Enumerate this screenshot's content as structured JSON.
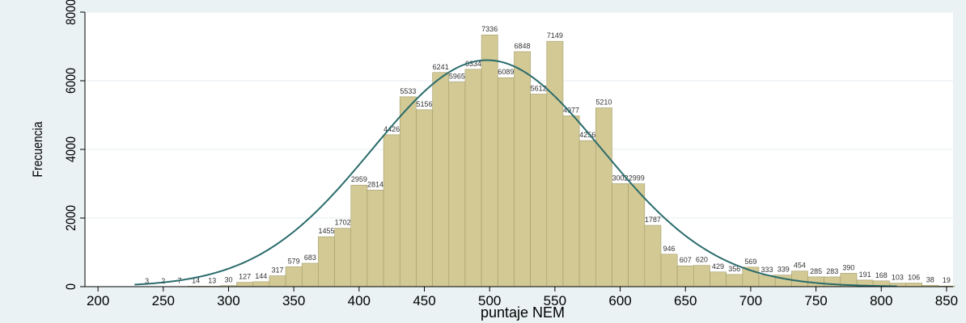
{
  "chart_data": {
    "type": "bar",
    "title": "",
    "xlabel": "puntaje NEM",
    "ylabel": "Frecuencia",
    "xlim": [
      190,
      855
    ],
    "ylim": [
      0,
      8000
    ],
    "bin_width": 12.5,
    "x_ticks": [
      200,
      250,
      300,
      350,
      400,
      450,
      500,
      550,
      600,
      650,
      700,
      750,
      800,
      850
    ],
    "y_ticks": [
      0,
      2000,
      4000,
      6000,
      8000
    ],
    "grid": true,
    "bars": [
      {
        "x": 237.5,
        "value": 3,
        "label": "3"
      },
      {
        "x": 250,
        "value": 2,
        "label": "2"
      },
      {
        "x": 262.5,
        "value": 7,
        "label": "7"
      },
      {
        "x": 275,
        "value": 14,
        "label": "14"
      },
      {
        "x": 287.5,
        "value": 13,
        "label": "13"
      },
      {
        "x": 300,
        "value": 30,
        "label": "30"
      },
      {
        "x": 312.5,
        "value": 127,
        "label": "127"
      },
      {
        "x": 325,
        "value": 144,
        "label": "144"
      },
      {
        "x": 337.5,
        "value": 317,
        "label": "317"
      },
      {
        "x": 350,
        "value": 579,
        "label": "579"
      },
      {
        "x": 362.5,
        "value": 683,
        "label": "683"
      },
      {
        "x": 375,
        "value": 1455,
        "label": "1455"
      },
      {
        "x": 387.5,
        "value": 1702,
        "label": "1702"
      },
      {
        "x": 400,
        "value": 2959,
        "label": "2959"
      },
      {
        "x": 412.5,
        "value": 2814,
        "label": "2814"
      },
      {
        "x": 425,
        "value": 4426,
        "label": "4426"
      },
      {
        "x": 437.5,
        "value": 5533,
        "label": "5533"
      },
      {
        "x": 450,
        "value": 5156,
        "label": "5156"
      },
      {
        "x": 462.5,
        "value": 6241,
        "label": "6241"
      },
      {
        "x": 475,
        "value": 5965,
        "label": "5965"
      },
      {
        "x": 487.5,
        "value": 6334,
        "label": "6334"
      },
      {
        "x": 500,
        "value": 7336,
        "label": "7336"
      },
      {
        "x": 512.5,
        "value": 6089,
        "label": "6089"
      },
      {
        "x": 525,
        "value": 6848,
        "label": "6848"
      },
      {
        "x": 537.5,
        "value": 5612,
        "label": "5612"
      },
      {
        "x": 550,
        "value": 7149,
        "label": "7149"
      },
      {
        "x": 562.5,
        "value": 4977,
        "label": "4977"
      },
      {
        "x": 575,
        "value": 4256,
        "label": "4256"
      },
      {
        "x": 587.5,
        "value": 5210,
        "label": "5210"
      },
      {
        "x": 600,
        "value": 3002,
        "label": "3002"
      },
      {
        "x": 612.5,
        "value": 2999,
        "label": "2999"
      },
      {
        "x": 625,
        "value": 1787,
        "label": "1787"
      },
      {
        "x": 637.5,
        "value": 946,
        "label": "946"
      },
      {
        "x": 650,
        "value": 607,
        "label": "607"
      },
      {
        "x": 662.5,
        "value": 620,
        "label": "620"
      },
      {
        "x": 675,
        "value": 429,
        "label": "429"
      },
      {
        "x": 687.5,
        "value": 356,
        "label": "356"
      },
      {
        "x": 700,
        "value": 569,
        "label": "569"
      },
      {
        "x": 712.5,
        "value": 333,
        "label": "333"
      },
      {
        "x": 725,
        "value": 339,
        "label": "339"
      },
      {
        "x": 737.5,
        "value": 454,
        "label": "454"
      },
      {
        "x": 750,
        "value": 285,
        "label": "285"
      },
      {
        "x": 762.5,
        "value": 283,
        "label": "283"
      },
      {
        "x": 775,
        "value": 390,
        "label": "390"
      },
      {
        "x": 787.5,
        "value": 191,
        "label": "191"
      },
      {
        "x": 800,
        "value": 168,
        "label": "168"
      },
      {
        "x": 812.5,
        "value": 103,
        "label": "103"
      },
      {
        "x": 825,
        "value": 106,
        "label": "106"
      },
      {
        "x": 837.5,
        "value": 38,
        "label": "38"
      },
      {
        "x": 850,
        "value": 19,
        "label": "19"
      }
    ],
    "normal_curve": {
      "mean": 498,
      "sd": 88,
      "peak": 6600,
      "x_range": [
        228,
        812
      ]
    },
    "colors": {
      "bar_fill": "#d2c995",
      "bar_stroke": "#a39c6a",
      "curve": "#2b6b6b",
      "plot_bg": "#ffffff",
      "outer_bg": "#eaf2f3",
      "grid": "#e6eef0"
    }
  }
}
